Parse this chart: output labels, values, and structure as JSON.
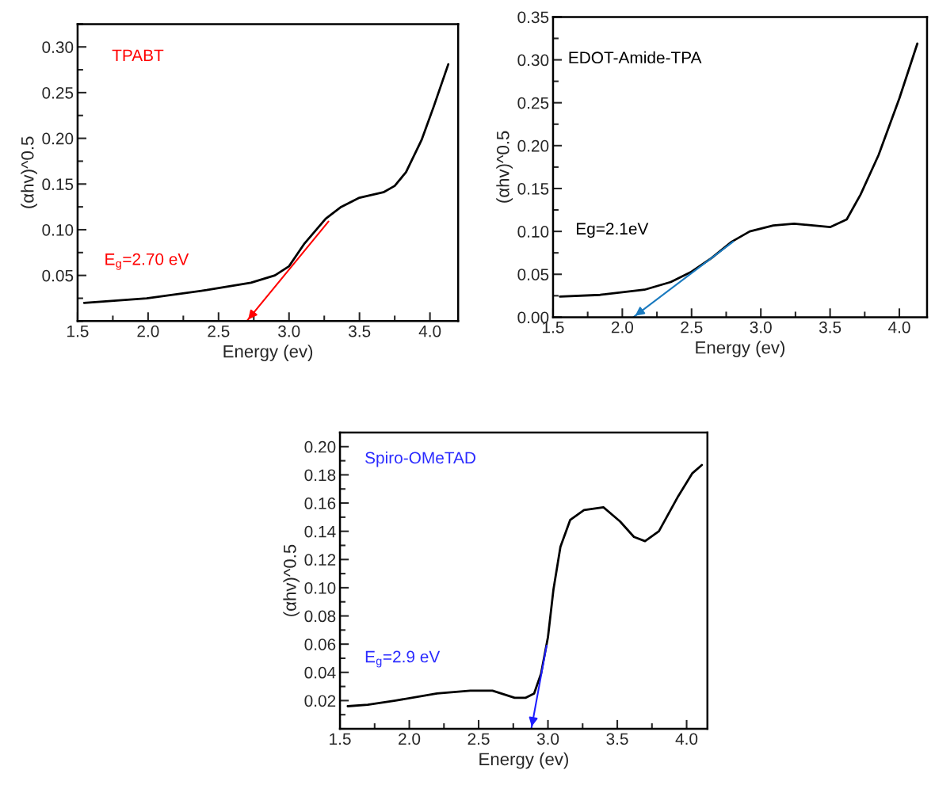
{
  "chart_data": [
    {
      "type": "line",
      "xlabel": "Energy (ev)",
      "ylabel": "(αhv)^0.5",
      "xlim": [
        1.5,
        4.2
      ],
      "xticks": [
        {
          "value": 1.5,
          "label": "1.5"
        },
        {
          "value": 2,
          "label": "2.0"
        },
        {
          "value": 2.5,
          "label": "2.5"
        },
        {
          "value": 3,
          "label": "3.0"
        },
        {
          "value": 3.5,
          "label": "3.5"
        },
        {
          "value": 4,
          "label": "4.0"
        }
      ],
      "ylim": [
        0,
        0.325
      ],
      "yticks": [
        {
          "value": 0.05,
          "label": "0.05"
        },
        {
          "value": 0.1,
          "label": "0.10"
        },
        {
          "value": 0.15,
          "label": "0.15"
        },
        {
          "value": 0.2,
          "label": "0.20"
        },
        {
          "value": 0.25,
          "label": "0.25"
        },
        {
          "value": 0.3,
          "label": "0.30"
        }
      ],
      "annotations": [
        "TPABT",
        "E$_{g}$=2.70 eV"
      ],
      "colors": [
        "#ff0000",
        "#ff0000"
      ],
      "series": [
        {
          "color": "#000000",
          "x": [
            1.547,
            1.99,
            2.415,
            2.73,
            2.9,
            3.0,
            3.11,
            3.26,
            3.37,
            3.5,
            3.67,
            3.75,
            3.83,
            3.94,
            4.025,
            4.13
          ],
          "values": [
            0.02,
            0.025,
            0.034,
            0.042,
            0.05,
            0.06,
            0.085,
            0.112,
            0.125,
            0.135,
            0.141,
            0.148,
            0.163,
            0.198,
            0.234,
            0.281
          ]
        },
        {
          "type": "line",
          "color": "#ff0000",
          "x": [
            3.28,
            2.7
          ],
          "values": [
            0.109,
            0.0
          ]
        }
      ]
    },
    {
      "type": "line",
      "xlabel": "Energy (ev)",
      "ylabel": "(αhv)^0.5",
      "xlim": [
        1.5,
        4.2
      ],
      "xticks": [
        {
          "value": 1.5,
          "label": "1.5"
        },
        {
          "value": 2,
          "label": "2.0"
        },
        {
          "value": 2.5,
          "label": "2.5"
        },
        {
          "value": 3,
          "label": "3.0"
        },
        {
          "value": 3.5,
          "label": "3.5"
        },
        {
          "value": 4,
          "label": "4.0"
        }
      ],
      "ylim": [
        0,
        0.35
      ],
      "yticks": [
        {
          "value": 0,
          "label": "0.00"
        },
        {
          "value": 0.05,
          "label": "0.05"
        },
        {
          "value": 0.1,
          "label": "0.10"
        },
        {
          "value": 0.15,
          "label": "0.15"
        },
        {
          "value": 0.2,
          "label": "0.20"
        },
        {
          "value": 0.25,
          "label": "0.25"
        },
        {
          "value": 0.3,
          "label": "0.30"
        },
        {
          "value": 0.35,
          "label": "0.35"
        }
      ],
      "annotations": [
        "EDOT-Amide-TPA",
        "Eg=2.1eV"
      ],
      "colors": [
        "#000000",
        "#000000"
      ],
      "series": [
        {
          "color": "#000000",
          "x": [
            1.55,
            1.84,
            2.16,
            2.35,
            2.5,
            2.645,
            2.79,
            2.92,
            3.09,
            3.24,
            3.38,
            3.5,
            3.62,
            3.72,
            3.85,
            4.0,
            4.13
          ],
          "values": [
            0.024,
            0.026,
            0.032,
            0.041,
            0.053,
            0.069,
            0.088,
            0.1,
            0.107,
            0.109,
            0.107,
            0.105,
            0.114,
            0.143,
            0.189,
            0.255,
            0.319
          ]
        },
        {
          "type": "line",
          "color": "#1a7abf",
          "x": [
            2.8,
            2.08
          ],
          "values": [
            0.088,
            0.0
          ]
        }
      ]
    },
    {
      "type": "line",
      "xlabel": "Energy (ev)",
      "ylabel": "(αhv)^0.5",
      "xlim": [
        1.5,
        4.15
      ],
      "xticks": [
        {
          "value": 1.5,
          "label": "1.5"
        },
        {
          "value": 2,
          "label": "2.0"
        },
        {
          "value": 2.5,
          "label": "2.5"
        },
        {
          "value": 3,
          "label": "3.0"
        },
        {
          "value": 3.5,
          "label": "3.5"
        },
        {
          "value": 4,
          "label": "4.0"
        }
      ],
      "ylim": [
        0,
        0.21
      ],
      "yticks": [
        {
          "value": 0.02,
          "label": "0.02"
        },
        {
          "value": 0.04,
          "label": "0.04"
        },
        {
          "value": 0.06,
          "label": "0.06"
        },
        {
          "value": 0.08,
          "label": "0.08"
        },
        {
          "value": 0.1,
          "label": "0.10"
        },
        {
          "value": 0.12,
          "label": "0.12"
        },
        {
          "value": 0.14,
          "label": "0.14"
        },
        {
          "value": 0.16,
          "label": "0.16"
        },
        {
          "value": 0.18,
          "label": "0.18"
        },
        {
          "value": 0.2,
          "label": "0.20"
        }
      ],
      "annotations": [
        "Spiro-OMeTAD",
        "E$_{g}$=2.9 eV"
      ],
      "colors": [
        "#2b2bff",
        "#2b2bff"
      ],
      "series": [
        {
          "color": "#000000",
          "x": [
            1.556,
            1.7,
            1.9,
            2.2,
            2.44,
            2.6,
            2.76,
            2.84,
            2.9,
            2.95,
            3.0,
            3.04,
            3.09,
            3.16,
            3.26,
            3.4,
            3.52,
            3.62,
            3.7,
            3.8,
            3.94,
            4.04,
            4.11
          ],
          "values": [
            0.016,
            0.017,
            0.02,
            0.025,
            0.027,
            0.027,
            0.022,
            0.022,
            0.025,
            0.039,
            0.065,
            0.099,
            0.129,
            0.148,
            0.155,
            0.157,
            0.147,
            0.136,
            0.133,
            0.14,
            0.165,
            0.181,
            0.187
          ]
        },
        {
          "type": "line",
          "color": "#1f1fff",
          "x": [
            2.99,
            2.88
          ],
          "values": [
            0.059,
            0.0
          ]
        }
      ]
    }
  ]
}
